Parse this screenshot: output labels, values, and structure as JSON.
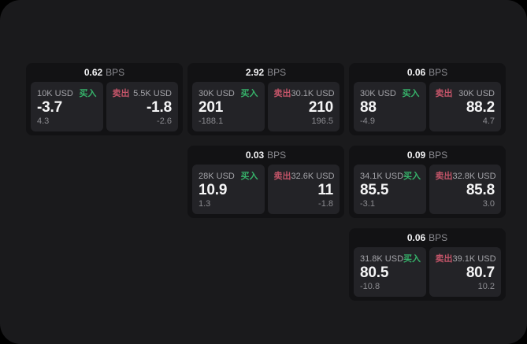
{
  "page": {
    "outer_background": "#000000",
    "panel_background": "#1a1a1c"
  },
  "labels": {
    "buy": "买入",
    "sell": "卖出",
    "bps_unit": "BPS"
  },
  "colors": {
    "buy_green": "#36b26a",
    "sell_red": "#c25468",
    "card_background": "#121214",
    "tile_background": "#232327",
    "primary_text": "#f5f5f6",
    "secondary_text": "#8b8b90",
    "amount_text": "#a3a3a8"
  },
  "cards": [
    {
      "bps": "0.62",
      "buy": {
        "amount": "10K USD",
        "value": "-3.7",
        "delta": "4.3"
      },
      "sell": {
        "amount": "5.5K USD",
        "value": "-1.8",
        "delta": "-2.6"
      }
    },
    {
      "bps": "2.92",
      "buy": {
        "amount": "30K USD",
        "value": "201",
        "delta": "-188.1"
      },
      "sell": {
        "amount": "30.1K USD",
        "value": "210",
        "delta": "196.5"
      }
    },
    {
      "bps": "0.06",
      "buy": {
        "amount": "30K USD",
        "value": "88",
        "delta": "-4.9"
      },
      "sell": {
        "amount": "30K USD",
        "value": "88.2",
        "delta": "4.7"
      }
    },
    {
      "bps": "0.03",
      "buy": {
        "amount": "28K USD",
        "value": "10.9",
        "delta": "1.3"
      },
      "sell": {
        "amount": "32.6K USD",
        "value": "11",
        "delta": "-1.8"
      }
    },
    {
      "bps": "0.09",
      "buy": {
        "amount": "34.1K USD",
        "value": "85.5",
        "delta": "-3.1"
      },
      "sell": {
        "amount": "32.8K USD",
        "value": "85.8",
        "delta": "3.0"
      }
    },
    {
      "bps": "0.06",
      "buy": {
        "amount": "31.8K USD",
        "value": "80.5",
        "delta": "-10.8"
      },
      "sell": {
        "amount": "39.1K USD",
        "value": "80.7",
        "delta": "10.2"
      }
    }
  ]
}
